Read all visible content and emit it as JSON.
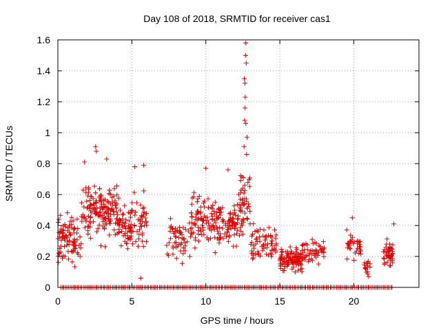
{
  "chart_data": {
    "type": "scatter",
    "title": "Day 108 of 2018, SRMTID for receiver cas1",
    "xlabel": "GPS time / hours",
    "ylabel": "SRMTID / TECUs",
    "xlim": [
      0,
      24.4
    ],
    "ylim": [
      0,
      1.6
    ],
    "x_ticks": [
      0,
      5,
      10,
      15,
      20
    ],
    "x_tick_labels": [
      "0",
      "5",
      "10",
      "15",
      "20"
    ],
    "y_ticks": [
      0,
      0.2,
      0.4,
      0.6,
      0.8,
      1.0,
      1.2,
      1.4,
      1.6
    ],
    "y_tick_labels": [
      "0",
      "0.2",
      "0.4",
      "0.6",
      "0.8",
      "1",
      "1.2",
      "1.4",
      "1.6"
    ],
    "grid": true,
    "marker": "+",
    "series": [
      {
        "name": "SRMTID",
        "color": "#e00000",
        "segments": [
          {
            "x_start": 0.0,
            "x_end": 1.6,
            "baseline": 0.3,
            "spread": 0.13,
            "count": 90
          },
          {
            "x_start": 1.6,
            "x_end": 4.0,
            "baseline": 0.5,
            "spread": 0.16,
            "count": 150
          },
          {
            "x_start": 4.0,
            "x_end": 6.0,
            "baseline": 0.42,
            "spread": 0.15,
            "count": 110
          },
          {
            "x_start": 7.3,
            "x_end": 9.0,
            "baseline": 0.3,
            "spread": 0.12,
            "count": 55
          },
          {
            "x_start": 9.0,
            "x_end": 10.5,
            "baseline": 0.45,
            "spread": 0.15,
            "count": 80
          },
          {
            "x_start": 10.5,
            "x_end": 12.2,
            "baseline": 0.42,
            "spread": 0.13,
            "count": 95
          },
          {
            "x_start": 12.2,
            "x_end": 13.0,
            "baseline": 0.5,
            "spread": 0.2,
            "count": 50
          },
          {
            "x_start": 13.0,
            "x_end": 14.8,
            "baseline": 0.28,
            "spread": 0.1,
            "count": 70
          },
          {
            "x_start": 15.0,
            "x_end": 16.5,
            "baseline": 0.18,
            "spread": 0.06,
            "count": 110
          },
          {
            "x_start": 16.5,
            "x_end": 18.0,
            "baseline": 0.24,
            "spread": 0.07,
            "count": 50
          },
          {
            "x_start": 19.5,
            "x_end": 20.5,
            "baseline": 0.27,
            "spread": 0.08,
            "count": 35
          },
          {
            "x_start": 20.7,
            "x_end": 21.1,
            "baseline": 0.14,
            "spread": 0.05,
            "count": 15
          },
          {
            "x_start": 22.0,
            "x_end": 22.7,
            "baseline": 0.22,
            "spread": 0.08,
            "count": 45
          }
        ],
        "spike_points": [
          {
            "x": 12.7,
            "y": 1.58
          },
          {
            "x": 12.68,
            "y": 1.5
          },
          {
            "x": 12.73,
            "y": 1.45
          },
          {
            "x": 12.6,
            "y": 1.35
          },
          {
            "x": 12.64,
            "y": 1.32
          },
          {
            "x": 12.66,
            "y": 1.23
          },
          {
            "x": 12.65,
            "y": 1.16
          },
          {
            "x": 12.62,
            "y": 1.08
          },
          {
            "x": 12.7,
            "y": 1.06
          },
          {
            "x": 12.78,
            "y": 0.97
          },
          {
            "x": 12.58,
            "y": 0.91
          },
          {
            "x": 12.75,
            "y": 0.86
          },
          {
            "x": 2.55,
            "y": 0.91
          },
          {
            "x": 2.6,
            "y": 0.88
          },
          {
            "x": 3.3,
            "y": 0.83
          },
          {
            "x": 1.8,
            "y": 0.81
          },
          {
            "x": 5.8,
            "y": 0.79
          },
          {
            "x": 5.2,
            "y": 0.78
          },
          {
            "x": 10.0,
            "y": 0.77
          },
          {
            "x": 11.5,
            "y": 0.76
          },
          {
            "x": 5.6,
            "y": 0.06
          },
          {
            "x": 21.0,
            "y": 0.07
          },
          {
            "x": 19.9,
            "y": 0.45
          },
          {
            "x": 22.7,
            "y": 0.41
          }
        ],
        "zero_line": {
          "x_start": 0.2,
          "x_end": 22.6,
          "y": 0,
          "count": 220
        }
      }
    ]
  }
}
